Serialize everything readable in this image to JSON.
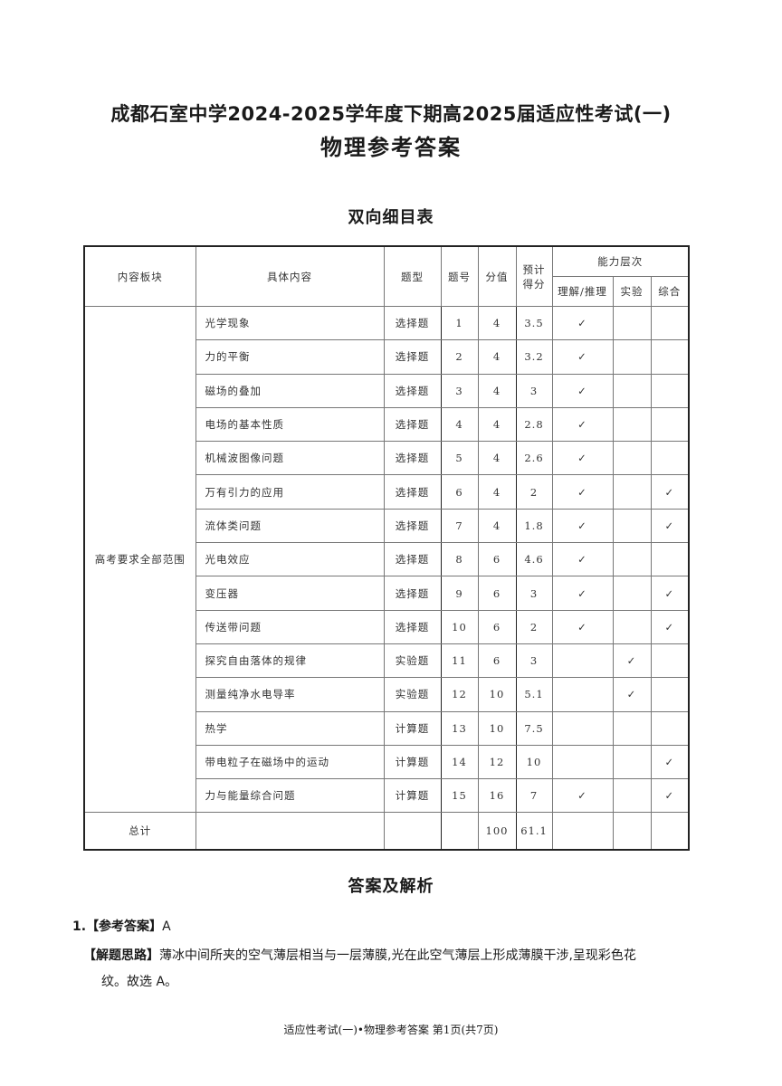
{
  "title": {
    "line1": "成都石室中学2024-2025学年度下期高2025届适应性考试(一)",
    "line2": "物理参考答案"
  },
  "table_title": "双向细目表",
  "table": {
    "headers": {
      "block": "内容板块",
      "content": "具体内容",
      "type": "题型",
      "number": "题号",
      "score": "分值",
      "expected": "预计得分",
      "ability": "能力层次",
      "ability_sub": [
        "理解/推理",
        "实验",
        "综合"
      ]
    },
    "block_label": "高考要求全部范围",
    "check_mark": "✓",
    "rows": [
      {
        "content": "光学现象",
        "type": "选择题",
        "number": "1",
        "score": "4",
        "expected": "3.5",
        "checks": [
          true,
          false,
          false
        ]
      },
      {
        "content": "力的平衡",
        "type": "选择题",
        "number": "2",
        "score": "4",
        "expected": "3.2",
        "checks": [
          true,
          false,
          false
        ]
      },
      {
        "content": "磁场的叠加",
        "type": "选择题",
        "number": "3",
        "score": "4",
        "expected": "3",
        "checks": [
          true,
          false,
          false
        ]
      },
      {
        "content": "电场的基本性质",
        "type": "选择题",
        "number": "4",
        "score": "4",
        "expected": "2.8",
        "checks": [
          true,
          false,
          false
        ]
      },
      {
        "content": "机械波图像问题",
        "type": "选择题",
        "number": "5",
        "score": "4",
        "expected": "2.6",
        "checks": [
          true,
          false,
          false
        ]
      },
      {
        "content": "万有引力的应用",
        "type": "选择题",
        "number": "6",
        "score": "4",
        "expected": "2",
        "checks": [
          true,
          false,
          true
        ]
      },
      {
        "content": "流体类问题",
        "type": "选择题",
        "number": "7",
        "score": "4",
        "expected": "1.8",
        "checks": [
          true,
          false,
          true
        ]
      },
      {
        "content": "光电效应",
        "type": "选择题",
        "number": "8",
        "score": "6",
        "expected": "4.6",
        "checks": [
          true,
          false,
          false
        ]
      },
      {
        "content": "变压器",
        "type": "选择题",
        "number": "9",
        "score": "6",
        "expected": "3",
        "checks": [
          true,
          false,
          true
        ]
      },
      {
        "content": "传送带问题",
        "type": "选择题",
        "number": "10",
        "score": "6",
        "expected": "2",
        "checks": [
          true,
          false,
          true
        ]
      },
      {
        "content": "探究自由落体的规律",
        "type": "实验题",
        "number": "11",
        "score": "6",
        "expected": "3",
        "checks": [
          false,
          true,
          false
        ]
      },
      {
        "content": "测量纯净水电导率",
        "type": "实验题",
        "number": "12",
        "score": "10",
        "expected": "5.1",
        "checks": [
          false,
          true,
          false
        ]
      },
      {
        "content": "热学",
        "type": "计算题",
        "number": "13",
        "score": "10",
        "expected": "7.5",
        "checks": [
          false,
          false,
          false
        ]
      },
      {
        "content": "带电粒子在磁场中的运动",
        "type": "计算题",
        "number": "14",
        "score": "12",
        "expected": "10",
        "checks": [
          false,
          false,
          true
        ]
      },
      {
        "content": "力与能量综合问题",
        "type": "计算题",
        "number": "15",
        "score": "16",
        "expected": "7",
        "checks": [
          true,
          false,
          true
        ]
      }
    ],
    "total": {
      "label": "总计",
      "score": "100",
      "expected": "61.1"
    }
  },
  "answers_title": "答案及解析",
  "answers": [
    {
      "number": "1.",
      "answer_tag": "【参考答案】",
      "answer": "A",
      "reason_tag": "【解题思路】",
      "reason_line1": "薄冰中间所夹的空气薄层相当与一层薄膜,光在此空气薄层上形成薄膜干涉,呈现彩色花",
      "reason_line2": "纹。故选 A。"
    }
  ],
  "footer": "适应性考试(一)•物理参考答案 第1页(共7页)"
}
